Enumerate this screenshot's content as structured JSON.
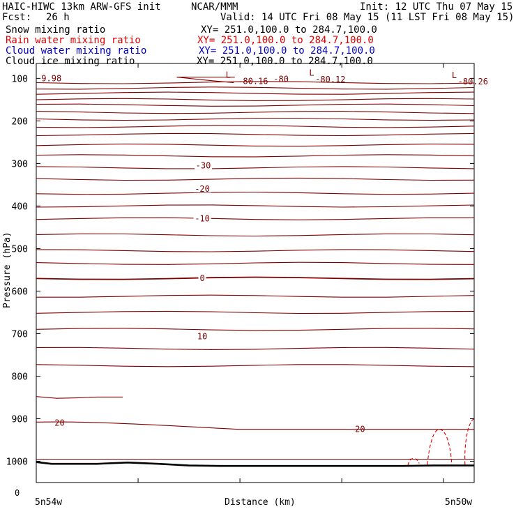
{
  "header": {
    "model": "HAIC-HIWC 13km ARW-GFS init",
    "source": "NCAR/MMM",
    "init": "Init: 12 UTC Thu 07 May 15",
    "fcst_label": "Fcst:",
    "fcst_value": "26 h",
    "valid": "Valid: 14 UTC Fri 08 May 15 (11 LST Fri 08 May 15)"
  },
  "fields": [
    {
      "name": "Snow mixing ratio",
      "xy": "XY= 251.0,100.0 to 284.7,100.0",
      "color": "#000000"
    },
    {
      "name": "Rain water mixing ratio",
      "xy": "XY= 251.0,100.0 to 284.7,100.0",
      "color": "#e00000"
    },
    {
      "name": "Cloud water mixing ratio",
      "xy": "XY= 251.0,100.0 to 284.7,100.0",
      "color": "#0000c8"
    },
    {
      "name": "Cloud ice mixing ratio",
      "xy": "XY= 251.0,100.0 to 284.7,100.0",
      "color": "#000000"
    }
  ],
  "chart_data": {
    "type": "line",
    "xlabel": "Distance (km)",
    "ylabel": "Pressure (hPa)",
    "x_tick_labels": [
      "0",
      "5n54w",
      "5n50w"
    ],
    "y_ticks": [
      100,
      200,
      300,
      400,
      500,
      600,
      700,
      800,
      900,
      1000
    ],
    "y_tick_labels": [
      "100",
      "200",
      "300",
      "400",
      "500",
      "600",
      "700",
      "800",
      "900",
      "1000"
    ],
    "ylim": [
      1050,
      65
    ],
    "xlim": [
      0,
      43
    ],
    "contour_color": "#800000",
    "terrain_color": "#000000",
    "rain_color": "#e00000",
    "temperature_contours": [
      {
        "label": "-30",
        "level": -30,
        "p": 305
      },
      {
        "label": "-20",
        "level": -20,
        "p": 360
      },
      {
        "label": "-10",
        "level": -10,
        "p": 430
      },
      {
        "label": "0",
        "level": 0,
        "p": 570
      },
      {
        "label": "10",
        "level": 10,
        "p": 707
      },
      {
        "label": "20",
        "level": 20,
        "p": 925
      }
    ],
    "annotations": [
      {
        "text": "9.98",
        "x": 0.5,
        "p": 100
      },
      {
        "text": "L",
        "x": 18.6,
        "p": 92
      },
      {
        "text": "-80.16",
        "x": 19.8,
        "p": 107
      },
      {
        "text": "-80",
        "x": 23.3,
        "p": 102
      },
      {
        "text": "L",
        "x": 26.8,
        "p": 87
      },
      {
        "text": "-80.12",
        "x": 27.4,
        "p": 103
      },
      {
        "text": "L",
        "x": 40.8,
        "p": 93
      },
      {
        "text": "-80.26",
        "x": 41.4,
        "p": 108
      },
      {
        "text": "20",
        "x": 1.8,
        "p": 910
      },
      {
        "text": "20",
        "x": 31.3,
        "p": 925
      }
    ],
    "terrain": {
      "x": [
        0,
        1.5,
        3,
        6,
        7,
        9,
        12,
        15,
        18,
        21,
        24,
        27,
        30,
        33,
        36,
        39,
        43
      ],
      "p": [
        1002,
        1006,
        1006,
        1006,
        1005,
        1003,
        1006,
        1010,
        1011,
        1011,
        1011,
        1011,
        1011,
        1011,
        1011,
        1010,
        1010
      ]
    }
  }
}
